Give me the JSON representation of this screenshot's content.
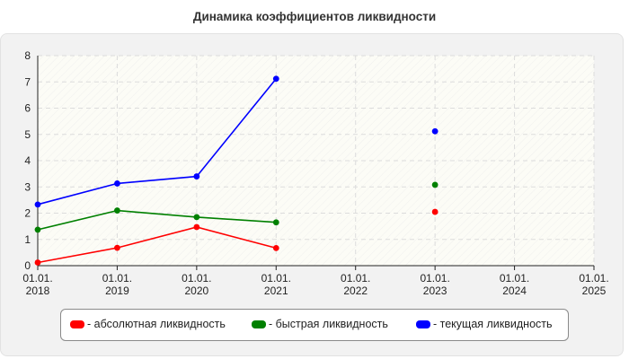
{
  "chart_title": "Динамика коэффициентов ликвидности",
  "chart_data": {
    "type": "line",
    "title": "Динамика коэффициентов ликвидности",
    "x_labels": [
      [
        "01.01.",
        "2018"
      ],
      [
        "01.01.",
        "2019"
      ],
      [
        "01.01.",
        "2020"
      ],
      [
        "01.01.",
        "2021"
      ],
      [
        "01.01.",
        "2022"
      ],
      [
        "01.01.",
        "2023"
      ],
      [
        "01.01.",
        "2024"
      ],
      [
        "01.01.",
        "2025"
      ]
    ],
    "y_ticks": [
      "0",
      "1",
      "2",
      "3",
      "4",
      "5",
      "6",
      "7",
      "8"
    ],
    "ylim": [
      0,
      8
    ],
    "grid": true,
    "legend_position": "bottom",
    "series": [
      {
        "name": "- абсолютная ликвидность",
        "color": "#ff0000",
        "values": [
          0.12,
          0.68,
          1.47,
          0.67,
          null,
          2.05,
          null,
          null
        ]
      },
      {
        "name": "- быстрая ликвидность",
        "color": "#008000",
        "values": [
          1.37,
          2.1,
          1.85,
          1.65,
          null,
          3.08,
          null,
          null
        ]
      },
      {
        "name": "- текущая ликвидность",
        "color": "#0000ff",
        "values": [
          2.33,
          3.13,
          3.4,
          7.12,
          null,
          5.12,
          null,
          null
        ]
      }
    ]
  }
}
